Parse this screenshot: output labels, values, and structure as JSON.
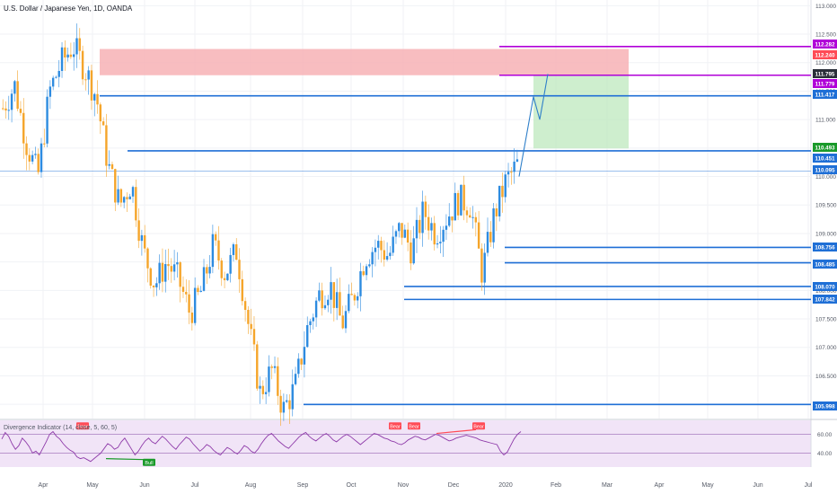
{
  "header": {
    "title": "U.S. Dollar / Japanese Yen, 1D, OANDA"
  },
  "indicator": {
    "label": "Divergence Indicator (14, close, 5, 60, 5)",
    "levels": [
      60,
      40
    ]
  },
  "colors": {
    "up": "#2d8be0",
    "down": "#f5a52b",
    "blue_line": "#1f6fd6",
    "purple": "#b000d8",
    "sell_zone": "#f7b1b5",
    "buy_zone": "#bde8be",
    "rsi_line": "#8e3aa9",
    "rsi_bg": "#f1e4f7",
    "green_tag": "#1a9a2a",
    "red_tag": "#ff4b56",
    "dark_tag": "#2a2e39"
  },
  "chart_data": {
    "type": "candlestick",
    "instrument": "USD/JPY",
    "title": "U.S. Dollar / Japanese Yen, 1D, OANDA",
    "ylim": [
      105.75,
      113.1
    ],
    "y_ticks": [
      113.0,
      112.5,
      112.0,
      111.5,
      111.0,
      110.5,
      110.0,
      109.5,
      109.0,
      108.5,
      108.0,
      107.5,
      107.0,
      106.5,
      106.0
    ],
    "x_ticks": [
      "Apr",
      "May",
      "Jun",
      "Jul",
      "Aug",
      "Sep",
      "Oct",
      "Nov",
      "Dec",
      "2020",
      "Feb",
      "Mar",
      "Apr",
      "May",
      "Jun",
      "Jul"
    ],
    "price_path": [
      [
        "Mar",
        111.2
      ],
      [
        "Mar",
        111.6
      ],
      [
        "Mar",
        110.6
      ],
      [
        "Mar",
        110.0
      ],
      [
        "Apr",
        111.5
      ],
      [
        "Apr",
        112.0
      ],
      [
        "Apr",
        112.3
      ],
      [
        "Apr",
        111.9
      ],
      [
        "May",
        111.4
      ],
      [
        "May",
        110.2
      ],
      [
        "May",
        109.5
      ],
      [
        "May",
        109.9
      ],
      [
        "May",
        108.7
      ],
      [
        "Jun",
        108.1
      ],
      [
        "Jun",
        108.5
      ],
      [
        "Jun",
        108.2
      ],
      [
        "Jun",
        107.6
      ],
      [
        "Jul",
        108.0
      ],
      [
        "Jul",
        108.8
      ],
      [
        "Jul",
        108.3
      ],
      [
        "Jul",
        108.7
      ],
      [
        "Aug",
        107.4
      ],
      [
        "Aug",
        106.2
      ],
      [
        "Aug",
        106.6
      ],
      [
        "Aug",
        105.9
      ],
      [
        "Sep",
        106.3
      ],
      [
        "Sep",
        107.3
      ],
      [
        "Sep",
        107.9
      ],
      [
        "Sep",
        108.1
      ],
      [
        "Oct",
        107.4
      ],
      [
        "Oct",
        107.9
      ],
      [
        "Oct",
        108.6
      ],
      [
        "Oct",
        108.8
      ],
      [
        "Nov",
        108.6
      ],
      [
        "Nov",
        109.1
      ],
      [
        "Nov",
        108.7
      ],
      [
        "Nov",
        109.4
      ],
      [
        "Dec",
        109.0
      ],
      [
        "Dec",
        109.3
      ],
      [
        "Dec",
        109.6
      ],
      [
        "Dec",
        109.5
      ],
      [
        "2020",
        108.3
      ],
      [
        "2020",
        109.3
      ],
      [
        "2020",
        109.9
      ],
      [
        "2020",
        110.2
      ]
    ],
    "price_labels": [
      {
        "value": 112.282,
        "text": "112.282",
        "color": "#b000d8"
      },
      {
        "value": 112.24,
        "text": "112.240",
        "color": "#ff4b56"
      },
      {
        "value": 111.795,
        "text": "111.795",
        "color": "#2a2e39"
      },
      {
        "value": 111.779,
        "text": "111.779",
        "color": "#b000d8"
      },
      {
        "value": 111.417,
        "text": "111.417",
        "color": "#1f6fd6"
      },
      {
        "value": 110.493,
        "text": "110.493",
        "color": "#1a9a2a"
      },
      {
        "value": 110.451,
        "text": "110.451",
        "color": "#1f6fd6"
      },
      {
        "value": 110.095,
        "text": "110.095",
        "color": "#1f6fd6"
      },
      {
        "value": 108.756,
        "text": "108.756",
        "color": "#1f6fd6"
      },
      {
        "value": 108.485,
        "text": "108.485",
        "color": "#1f6fd6"
      },
      {
        "value": 108.07,
        "text": "108.070",
        "color": "#1f6fd6"
      },
      {
        "value": 107.842,
        "text": "107.842",
        "color": "#1f6fd6"
      },
      {
        "value": 105.998,
        "text": "105.998",
        "color": "#1f6fd6"
      }
    ],
    "horizontal_levels": [
      {
        "value": 111.417,
        "from": "May",
        "style": "blue"
      },
      {
        "value": 110.451,
        "from": "May",
        "style": "blue"
      },
      {
        "value": 110.095,
        "from": "Mar",
        "style": "thin"
      },
      {
        "value": 108.756,
        "from": "2020",
        "style": "blue"
      },
      {
        "value": 108.485,
        "from": "2020",
        "style": "blue"
      },
      {
        "value": 108.07,
        "from": "Nov",
        "style": "blue"
      },
      {
        "value": 107.842,
        "from": "Nov",
        "style": "blue"
      },
      {
        "value": 105.998,
        "from": "Sep",
        "style": "blue"
      },
      {
        "value": 112.282,
        "from": "2020",
        "style": "purple"
      },
      {
        "value": 111.779,
        "from": "2020",
        "style": "purple"
      }
    ],
    "zones": [
      {
        "kind": "sell",
        "low": 111.779,
        "high": 112.24
      },
      {
        "kind": "buy",
        "low": 110.493,
        "high": 111.779
      }
    ],
    "projection_path": [
      110.0,
      111.4,
      111.0,
      111.8
    ],
    "indicator": {
      "name": "Divergence Indicator",
      "levels": [
        60,
        40
      ],
      "tags": [
        {
          "text": "Bear",
          "value": 64
        },
        {
          "text": "Bear",
          "value": 64
        },
        {
          "text": "Bear",
          "value": 64
        },
        {
          "text": "Bear",
          "value": 64
        },
        {
          "text": "Bull",
          "value": 36
        }
      ],
      "values": [
        55,
        62,
        58,
        50,
        44,
        48,
        56,
        52,
        47,
        40,
        42,
        38,
        45,
        52,
        60,
        63,
        58,
        55,
        50,
        46,
        43,
        41,
        36,
        34,
        35,
        33,
        31,
        34,
        37,
        40,
        45,
        50,
        48,
        44,
        46,
        52,
        56,
        50,
        44,
        38,
        42,
        48,
        53,
        56,
        52,
        50,
        54,
        58,
        55,
        51,
        47,
        44,
        49,
        53,
        57,
        55,
        50,
        46,
        42,
        45,
        49,
        47,
        43,
        40,
        38,
        42,
        46,
        44,
        41,
        39,
        43,
        48,
        46,
        42,
        40,
        44,
        50,
        55,
        59,
        61,
        57,
        53,
        50,
        47,
        45,
        49,
        53,
        57,
        60,
        62,
        58,
        55,
        53,
        56,
        59,
        61,
        58,
        54,
        52,
        55,
        58,
        60,
        58,
        55,
        52,
        49,
        52,
        55,
        58,
        61,
        60,
        58,
        56,
        55,
        53,
        52,
        50,
        49,
        51,
        54,
        56,
        58,
        57,
        55,
        54,
        56,
        58,
        60,
        59,
        57,
        55,
        53,
        54,
        56,
        57,
        58,
        59,
        58,
        57,
        56,
        54,
        53,
        52,
        51,
        50,
        49,
        42,
        38,
        41,
        48,
        55,
        60,
        63
      ]
    }
  }
}
